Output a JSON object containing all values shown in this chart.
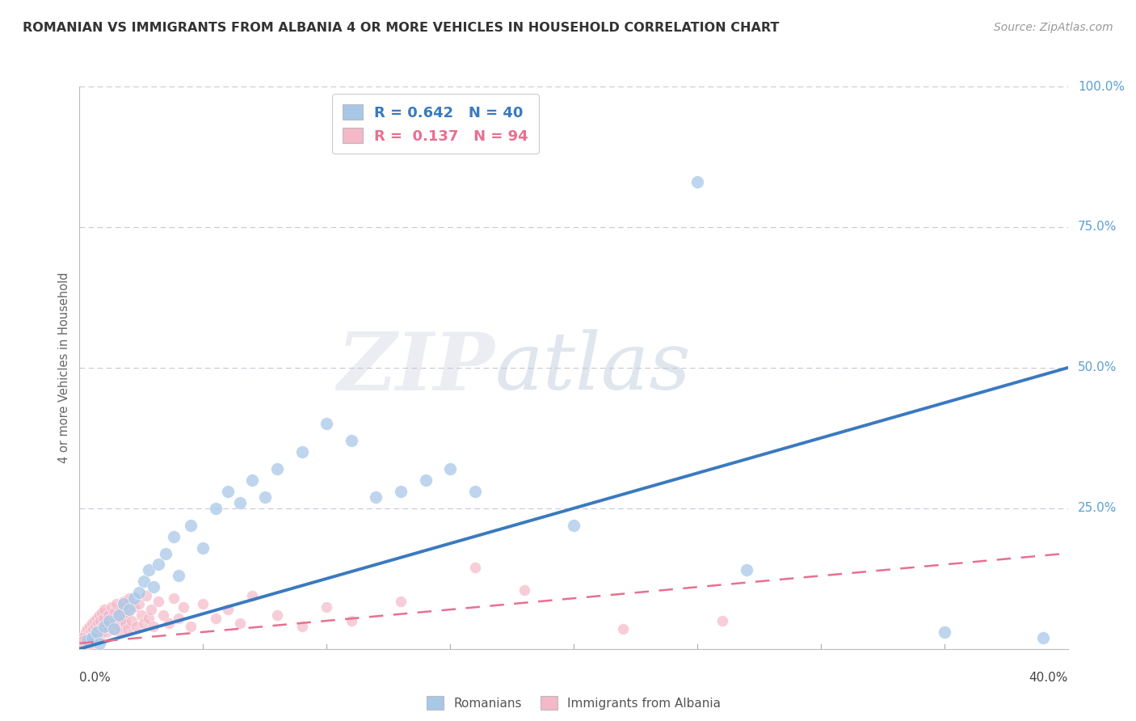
{
  "title": "ROMANIAN VS IMMIGRANTS FROM ALBANIA 4 OR MORE VEHICLES IN HOUSEHOLD CORRELATION CHART",
  "source": "Source: ZipAtlas.com",
  "ylabel_label": "4 or more Vehicles in Household",
  "xlim": [
    0.0,
    40.0
  ],
  "ylim": [
    0.0,
    100.0
  ],
  "r_romanian": 0.642,
  "n_romanian": 40,
  "r_albania": 0.137,
  "n_albania": 94,
  "color_romanian": "#a8c8e8",
  "color_albania": "#f4b8c8",
  "color_line_romanian": "#3a7abf",
  "color_line_albania": "#e87090",
  "legend_label_romanian": "Romanians",
  "legend_label_albania": "Immigrants from Albania",
  "watermark_zip": "ZIP",
  "watermark_atlas": "atlas",
  "background_color": "#ffffff",
  "grid_color": "#c8c8d8",
  "title_color": "#404040",
  "right_tick_color": "#5ba0d0",
  "romanian_line": [
    0.0,
    0.0,
    40.0,
    50.0
  ],
  "albania_line": [
    0.0,
    1.0,
    40.0,
    17.0
  ],
  "romanian_points": [
    [
      0.3,
      1.5
    ],
    [
      0.5,
      2.0
    ],
    [
      0.7,
      3.0
    ],
    [
      0.8,
      1.0
    ],
    [
      1.0,
      4.0
    ],
    [
      1.2,
      5.0
    ],
    [
      1.4,
      3.5
    ],
    [
      1.6,
      6.0
    ],
    [
      1.8,
      8.0
    ],
    [
      2.0,
      7.0
    ],
    [
      2.2,
      9.0
    ],
    [
      2.4,
      10.0
    ],
    [
      2.6,
      12.0
    ],
    [
      2.8,
      14.0
    ],
    [
      3.0,
      11.0
    ],
    [
      3.2,
      15.0
    ],
    [
      3.5,
      17.0
    ],
    [
      3.8,
      20.0
    ],
    [
      4.0,
      13.0
    ],
    [
      4.5,
      22.0
    ],
    [
      5.0,
      18.0
    ],
    [
      5.5,
      25.0
    ],
    [
      6.0,
      28.0
    ],
    [
      6.5,
      26.0
    ],
    [
      7.0,
      30.0
    ],
    [
      7.5,
      27.0
    ],
    [
      8.0,
      32.0
    ],
    [
      9.0,
      35.0
    ],
    [
      10.0,
      40.0
    ],
    [
      11.0,
      37.0
    ],
    [
      12.0,
      27.0
    ],
    [
      13.0,
      28.0
    ],
    [
      14.0,
      30.0
    ],
    [
      15.0,
      32.0
    ],
    [
      16.0,
      28.0
    ],
    [
      20.0,
      22.0
    ],
    [
      25.0,
      83.0
    ],
    [
      27.0,
      14.0
    ],
    [
      35.0,
      3.0
    ],
    [
      39.0,
      2.0
    ]
  ],
  "albania_points": [
    [
      0.05,
      0.5
    ],
    [
      0.08,
      1.0
    ],
    [
      0.1,
      0.5
    ],
    [
      0.12,
      1.5
    ],
    [
      0.15,
      2.0
    ],
    [
      0.18,
      1.0
    ],
    [
      0.2,
      2.5
    ],
    [
      0.22,
      1.5
    ],
    [
      0.25,
      3.0
    ],
    [
      0.28,
      2.0
    ],
    [
      0.3,
      1.0
    ],
    [
      0.32,
      3.5
    ],
    [
      0.35,
      2.5
    ],
    [
      0.38,
      1.5
    ],
    [
      0.4,
      4.0
    ],
    [
      0.42,
      2.0
    ],
    [
      0.45,
      3.0
    ],
    [
      0.48,
      1.0
    ],
    [
      0.5,
      4.5
    ],
    [
      0.52,
      2.5
    ],
    [
      0.55,
      3.5
    ],
    [
      0.58,
      2.0
    ],
    [
      0.6,
      5.0
    ],
    [
      0.62,
      1.5
    ],
    [
      0.65,
      4.0
    ],
    [
      0.68,
      3.0
    ],
    [
      0.7,
      5.5
    ],
    [
      0.72,
      2.5
    ],
    [
      0.75,
      4.5
    ],
    [
      0.78,
      3.5
    ],
    [
      0.8,
      6.0
    ],
    [
      0.82,
      2.0
    ],
    [
      0.85,
      5.0
    ],
    [
      0.88,
      3.0
    ],
    [
      0.9,
      6.5
    ],
    [
      0.92,
      4.0
    ],
    [
      0.95,
      3.5
    ],
    [
      0.98,
      5.5
    ],
    [
      1.0,
      7.0
    ],
    [
      1.05,
      4.0
    ],
    [
      1.1,
      3.0
    ],
    [
      1.15,
      6.0
    ],
    [
      1.2,
      5.0
    ],
    [
      1.25,
      4.5
    ],
    [
      1.3,
      7.5
    ],
    [
      1.35,
      3.5
    ],
    [
      1.4,
      6.5
    ],
    [
      1.45,
      5.0
    ],
    [
      1.5,
      8.0
    ],
    [
      1.55,
      4.0
    ],
    [
      1.6,
      6.0
    ],
    [
      1.65,
      3.0
    ],
    [
      1.7,
      7.0
    ],
    [
      1.75,
      5.5
    ],
    [
      1.8,
      8.5
    ],
    [
      1.85,
      4.5
    ],
    [
      1.9,
      6.5
    ],
    [
      1.95,
      3.5
    ],
    [
      2.0,
      9.0
    ],
    [
      2.1,
      5.0
    ],
    [
      2.2,
      7.5
    ],
    [
      2.3,
      4.0
    ],
    [
      2.4,
      8.0
    ],
    [
      2.5,
      6.0
    ],
    [
      2.6,
      4.5
    ],
    [
      2.7,
      9.5
    ],
    [
      2.8,
      5.5
    ],
    [
      2.9,
      7.0
    ],
    [
      3.0,
      4.0
    ],
    [
      3.2,
      8.5
    ],
    [
      3.4,
      6.0
    ],
    [
      3.6,
      4.5
    ],
    [
      3.8,
      9.0
    ],
    [
      4.0,
      5.5
    ],
    [
      4.2,
      7.5
    ],
    [
      4.5,
      4.0
    ],
    [
      5.0,
      8.0
    ],
    [
      5.5,
      5.5
    ],
    [
      6.0,
      7.0
    ],
    [
      6.5,
      4.5
    ],
    [
      7.0,
      9.5
    ],
    [
      8.0,
      6.0
    ],
    [
      9.0,
      4.0
    ],
    [
      10.0,
      7.5
    ],
    [
      11.0,
      5.0
    ],
    [
      13.0,
      8.5
    ],
    [
      16.0,
      14.5
    ],
    [
      18.0,
      10.5
    ],
    [
      22.0,
      3.5
    ],
    [
      26.0,
      5.0
    ],
    [
      0.06,
      1.0
    ],
    [
      0.09,
      0.5
    ],
    [
      0.13,
      2.0
    ],
    [
      0.16,
      1.5
    ]
  ]
}
